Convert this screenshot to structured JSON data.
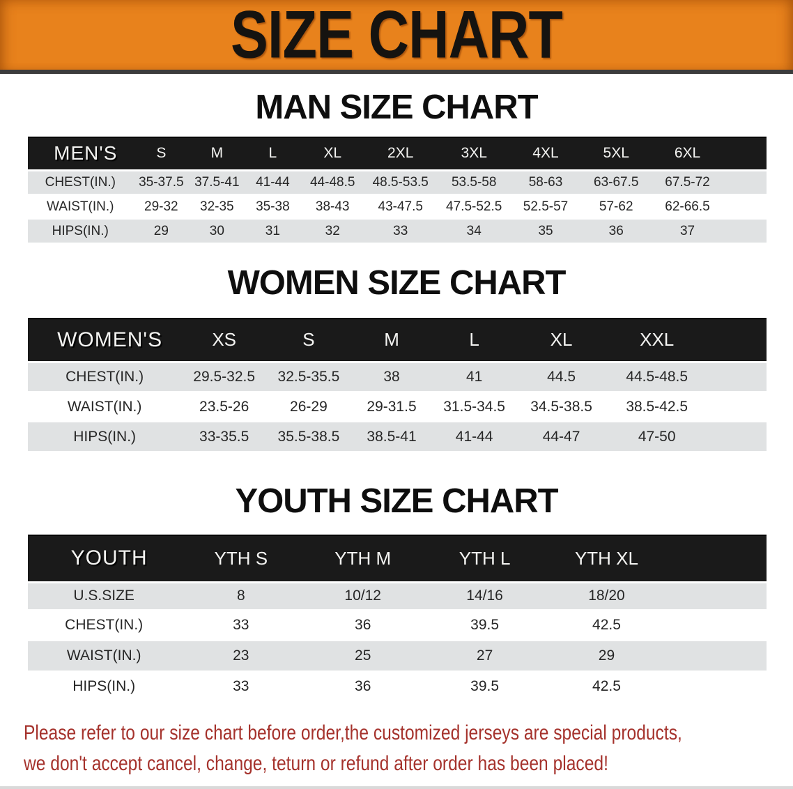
{
  "banner": {
    "title": "SIZE CHART"
  },
  "sections": [
    {
      "id": "men",
      "heading": "MAN SIZE CHART",
      "group_label": "MEN'S",
      "sizes": [
        "S",
        "M",
        "L",
        "XL",
        "2XL",
        "3XL",
        "4XL",
        "5XL",
        "6XL"
      ],
      "rows": [
        {
          "label": "CHEST(IN.)",
          "values": [
            "35-37.5",
            "37.5-41",
            "41-44",
            "44-48.5",
            "48.5-53.5",
            "53.5-58",
            "58-63",
            "63-67.5",
            "67.5-72"
          ]
        },
        {
          "label": "WAIST(IN.)",
          "values": [
            "29-32",
            "32-35",
            "35-38",
            "38-43",
            "43-47.5",
            "47.5-52.5",
            "52.5-57",
            "57-62",
            "62-66.5"
          ]
        },
        {
          "label": "HIPS(IN.)",
          "values": [
            "29",
            "30",
            "31",
            "32",
            "33",
            "34",
            "35",
            "36",
            "37"
          ]
        }
      ]
    },
    {
      "id": "women",
      "heading": "WOMEN SIZE CHART",
      "group_label": "WOMEN'S",
      "sizes": [
        "XS",
        "S",
        "M",
        "L",
        "XL",
        "XXL"
      ],
      "rows": [
        {
          "label": "CHEST(IN.)",
          "values": [
            "29.5-32.5",
            "32.5-35.5",
            "38",
            "41",
            "44.5",
            "44.5-48.5"
          ]
        },
        {
          "label": "WAIST(IN.)",
          "values": [
            "23.5-26",
            "26-29",
            "29-31.5",
            "31.5-34.5",
            "34.5-38.5",
            "38.5-42.5"
          ]
        },
        {
          "label": "HIPS(IN.)",
          "values": [
            "33-35.5",
            "35.5-38.5",
            "38.5-41",
            "41-44",
            "44-47",
            "47-50"
          ]
        }
      ]
    },
    {
      "id": "youth",
      "heading": "YOUTH SIZE CHART",
      "group_label": "YOUTH",
      "sizes": [
        "YTH S",
        "YTH M",
        "YTH L",
        "YTH XL"
      ],
      "rows": [
        {
          "label": "U.S.SIZE",
          "values": [
            "8",
            "10/12",
            "14/16",
            "18/20"
          ]
        },
        {
          "label": "CHEST(IN.)",
          "values": [
            "33",
            "36",
            "39.5",
            "42.5"
          ]
        },
        {
          "label": "WAIST(IN.)",
          "values": [
            "23",
            "25",
            "27",
            "29"
          ]
        },
        {
          "label": "HIPS(IN.)",
          "values": [
            "33",
            "36",
            "39.5",
            "42.5"
          ]
        }
      ]
    }
  ],
  "disclaimer": [
    "Please refer to our size chart before order,the customized jerseys are special products,",
    "we don't accept cancel, change, teturn or refund after order has been placed!"
  ],
  "colors": {
    "banner_orange": "#E8821C",
    "header_black": "#1a1a1a",
    "stripe_gray": "#E0E2E3",
    "disclaimer_red": "#A5322C"
  }
}
